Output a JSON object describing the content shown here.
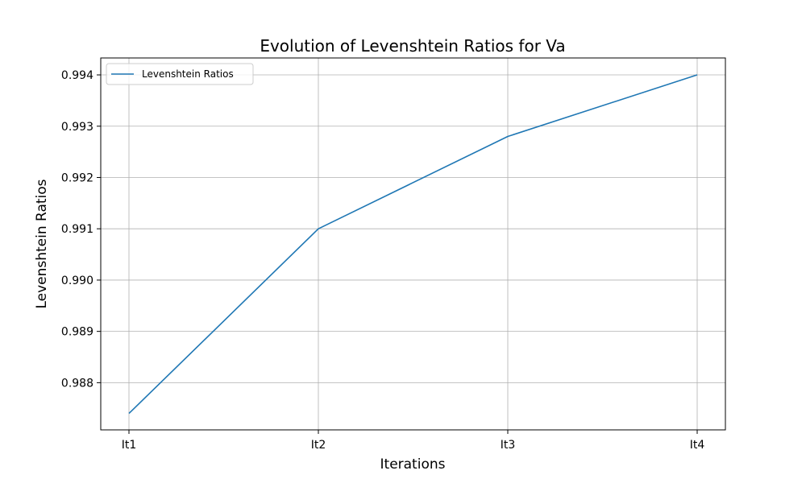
{
  "chart_data": {
    "type": "line",
    "title": "Evolution of Levenshtein Ratios for Va",
    "xlabel": "Iterations",
    "ylabel": "Levenshtein Ratios",
    "categories": [
      "It1",
      "It2",
      "It3",
      "It4"
    ],
    "series": [
      {
        "name": "Levenshtein Ratios",
        "values": [
          0.9874,
          0.991,
          0.9928,
          0.994
        ],
        "color": "#1f77b4"
      }
    ],
    "yticks": [
      0.988,
      0.989,
      0.99,
      0.991,
      0.992,
      0.993,
      0.994
    ],
    "ytick_labels": [
      "0.988",
      "0.989",
      "0.990",
      "0.991",
      "0.992",
      "0.993",
      "0.994"
    ],
    "ylim": [
      0.98708,
      0.99433
    ],
    "grid": true,
    "legend_position": "upper-left"
  }
}
